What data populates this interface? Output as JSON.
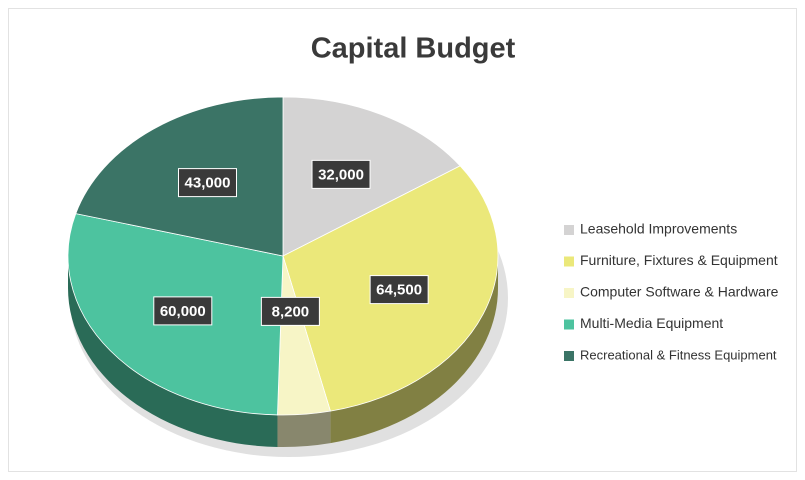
{
  "chart_data": {
    "type": "pie",
    "title": "Capital Budget",
    "categories": [
      "Leasehold Improvements",
      "Furniture, Fixtures & Equipment",
      "Computer Software & Hardware",
      "Multi-Media Equipment",
      "Recreational & Fitness Equipment"
    ],
    "values": [
      32000,
      64500,
      8200,
      60000,
      43000
    ],
    "value_labels": [
      "32,000",
      "64,500",
      "8,200",
      "60,000",
      "43,000"
    ],
    "colors": [
      "#d4d3d3",
      "#ebe87a",
      "#f7f5c6",
      "#4dc39f",
      "#3b7466"
    ],
    "legend": "right"
  }
}
